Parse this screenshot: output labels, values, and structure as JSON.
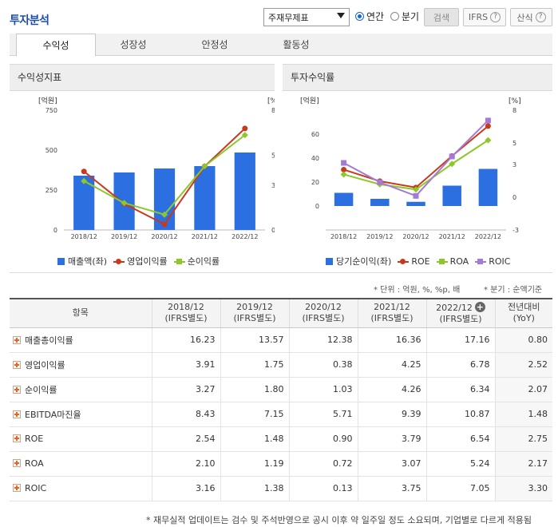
{
  "header": {
    "title": "투자분석",
    "select_value": "주재무제표",
    "radio_annual": "연간",
    "radio_quarter": "분기",
    "search_label": "검색",
    "ifrs_label": "IFRS",
    "formula_label": "산식"
  },
  "tabs": [
    "수익성",
    "성장성",
    "안정성",
    "활동성"
  ],
  "left_panel": {
    "title": "수익성지표"
  },
  "right_panel": {
    "title": "투자수익률"
  },
  "chart_data": [
    {
      "type": "bar",
      "title": "수익성지표",
      "categories": [
        "2018/12",
        "2019/12",
        "2020/12",
        "2021/12",
        "2022/12"
      ],
      "y_left_label": "[억원]",
      "y_right_label": "[%]",
      "y_left_ticks": [
        "750",
        "500",
        "250",
        "0"
      ],
      "y_right_ticks": [
        "8",
        "5",
        "3",
        "0"
      ],
      "ylim_left": [
        0,
        750
      ],
      "ylim_right": [
        0,
        8
      ],
      "series": [
        {
          "name": "매출액(좌)",
          "kind": "bar",
          "axis": "left",
          "color": "#2c6fe0",
          "values": [
            340,
            360,
            385,
            400,
            485
          ]
        },
        {
          "name": "영업이익률",
          "kind": "line",
          "axis": "right",
          "color": "#c8391d",
          "marker": "circle",
          "values": [
            3.91,
            1.75,
            0.38,
            4.25,
            6.78
          ]
        },
        {
          "name": "순이익률",
          "kind": "line",
          "axis": "right",
          "color": "#8ec72a",
          "marker": "diamond",
          "values": [
            3.27,
            1.8,
            1.03,
            4.26,
            6.34
          ]
        }
      ]
    },
    {
      "type": "bar",
      "title": "투자수익률",
      "categories": [
        "2018/12",
        "2019/12",
        "2020/12",
        "2021/12",
        "2022/12"
      ],
      "y_left_label": "[억원]",
      "y_right_label": "[%]",
      "y_left_ticks": [
        "60",
        "40",
        "20",
        "0"
      ],
      "y_right_ticks": [
        "8",
        "5",
        "3",
        "0",
        "-3"
      ],
      "y_left_tick_values": [
        60,
        40,
        20,
        0
      ],
      "ylim_left": [
        -20,
        80
      ],
      "ylim_right": [
        -3,
        8
      ],
      "series": [
        {
          "name": "당기순이익(좌)",
          "kind": "bar",
          "axis": "left",
          "color": "#2c6fe0",
          "values": [
            11,
            6,
            3.5,
            17,
            31
          ]
        },
        {
          "name": "ROE",
          "kind": "line",
          "axis": "right",
          "color": "#c8391d",
          "marker": "circle",
          "values": [
            2.54,
            1.48,
            0.9,
            3.79,
            6.54
          ]
        },
        {
          "name": "ROA",
          "kind": "line",
          "axis": "right",
          "color": "#8ec72a",
          "marker": "diamond",
          "values": [
            2.1,
            1.19,
            0.72,
            3.07,
            5.24
          ]
        },
        {
          "name": "ROIC",
          "kind": "line",
          "axis": "right",
          "color": "#a37ad6",
          "marker": "square",
          "values": [
            3.16,
            1.38,
            0.13,
            3.75,
            7.05
          ]
        }
      ]
    }
  ],
  "notes": {
    "unit": "* 단위 : 억원, %, %p, 배",
    "quarter": "* 분기 : 순액기준"
  },
  "table": {
    "header_item": "항목",
    "columns": [
      {
        "year": "2018/12",
        "sub": "(IFRS별도)"
      },
      {
        "year": "2019/12",
        "sub": "(IFRS별도)"
      },
      {
        "year": "2020/12",
        "sub": "(IFRS별도)"
      },
      {
        "year": "2021/12",
        "sub": "(IFRS별도)"
      },
      {
        "year": "2022/12",
        "sub": "(IFRS별도)"
      }
    ],
    "yoy_top": "전년대비",
    "yoy_sub": "(YoY)",
    "rows": [
      {
        "label": "매출총이익률",
        "values": [
          "16.23",
          "13.57",
          "12.38",
          "16.36",
          "17.16"
        ],
        "yoy": "0.80"
      },
      {
        "label": "영업이익률",
        "values": [
          "3.91",
          "1.75",
          "0.38",
          "4.25",
          "6.78"
        ],
        "yoy": "2.52"
      },
      {
        "label": "순이익률",
        "values": [
          "3.27",
          "1.80",
          "1.03",
          "4.26",
          "6.34"
        ],
        "yoy": "2.07"
      },
      {
        "label": "EBITDA마진율",
        "values": [
          "8.43",
          "7.15",
          "5.71",
          "9.39",
          "10.87"
        ],
        "yoy": "1.48"
      },
      {
        "label": "ROE",
        "values": [
          "2.54",
          "1.48",
          "0.90",
          "3.79",
          "6.54"
        ],
        "yoy": "2.75"
      },
      {
        "label": "ROA",
        "values": [
          "2.10",
          "1.19",
          "0.72",
          "3.07",
          "5.24"
        ],
        "yoy": "2.17"
      },
      {
        "label": "ROIC",
        "values": [
          "3.16",
          "1.38",
          "0.13",
          "3.75",
          "7.05"
        ],
        "yoy": "3.30"
      }
    ]
  },
  "footer": "* 재무실적 업데이트는 검수 및 주석반영으로 공시 이후 약 일주일 정도 소요되며, 기업별로 다르게 적용됨"
}
